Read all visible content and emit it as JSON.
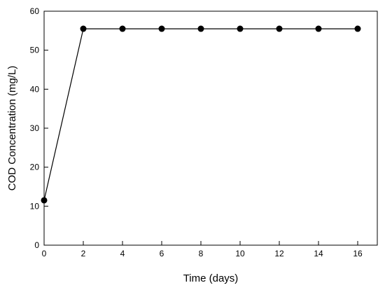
{
  "chart_data": {
    "type": "line",
    "xlabel": "Time (days)",
    "ylabel": "COD Concentration (mg/L)",
    "xlim": [
      0,
      17
    ],
    "ylim": [
      0,
      60
    ],
    "xticks": [
      0,
      2,
      4,
      6,
      8,
      10,
      12,
      14,
      16
    ],
    "yticks": [
      0,
      10,
      20,
      30,
      40,
      50,
      60
    ],
    "grid": false,
    "series": [
      {
        "x": [
          0,
          2,
          4,
          6,
          8,
          10,
          12,
          14,
          16
        ],
        "y": [
          11.5,
          55.5,
          55.5,
          55.5,
          55.5,
          55.5,
          55.5,
          55.5,
          55.5
        ],
        "color": "#000000",
        "marker": "filled-circle"
      }
    ]
  }
}
